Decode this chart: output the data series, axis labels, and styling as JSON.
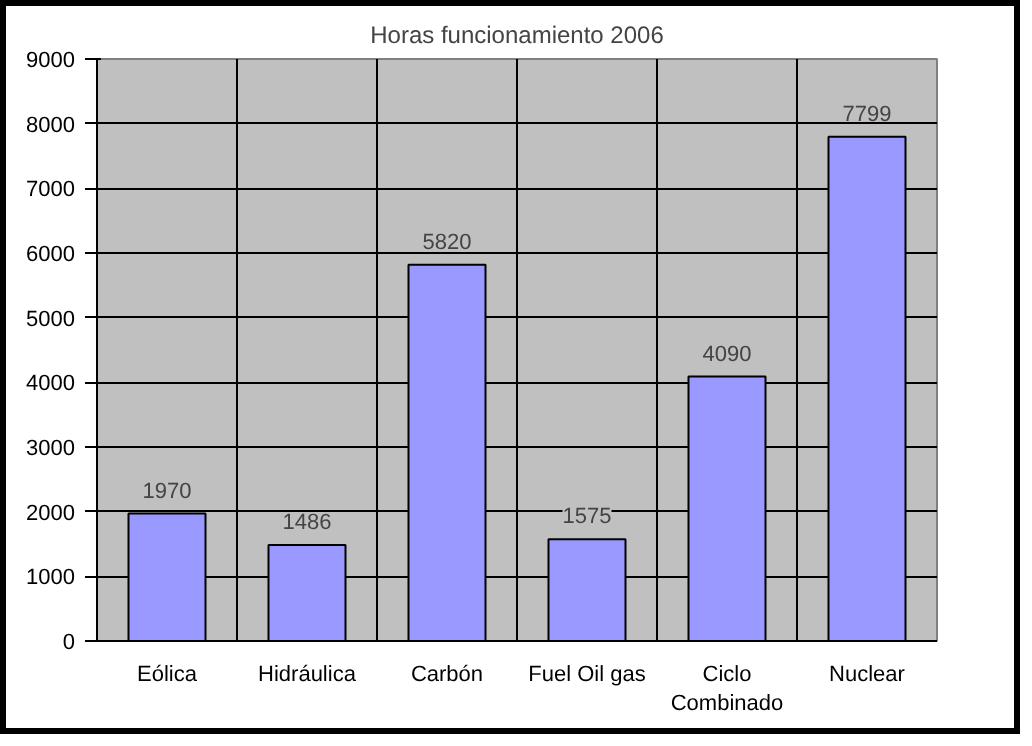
{
  "chart_data": {
    "type": "bar",
    "title": "Horas funcionamiento 2006",
    "categories": [
      "Eólica",
      "Hidráulica",
      "Carbón",
      "Fuel Oil gas",
      "Ciclo Combinado",
      "Nuclear"
    ],
    "values": [
      1970,
      1486,
      5820,
      1575,
      4090,
      7799
    ],
    "color": "#9999ff",
    "ylim": [
      0,
      9000
    ],
    "yticks": [
      0,
      1000,
      2000,
      3000,
      4000,
      5000,
      6000,
      7000,
      8000,
      9000
    ],
    "grid": true,
    "data_labels": true
  }
}
